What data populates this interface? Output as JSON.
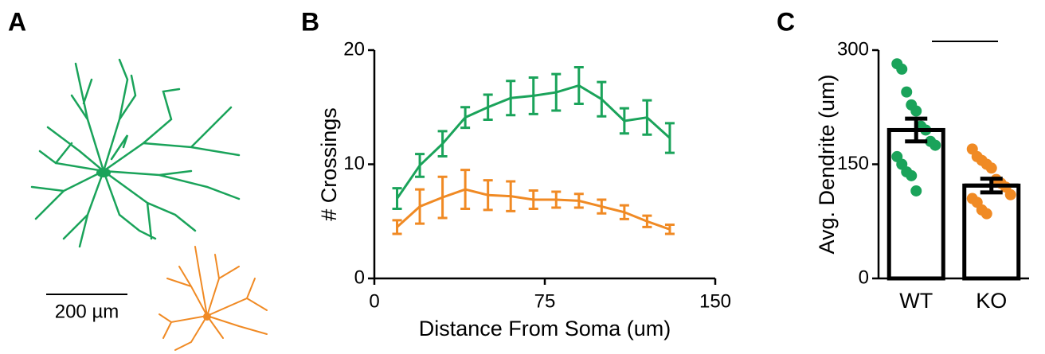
{
  "panel_a": {
    "label": "A",
    "scale_bar": "200 µm"
  },
  "chart_data": [
    {
      "type": "line",
      "label": "B",
      "xlabel": "Distance From Soma (um)",
      "ylabel": "# Crossings",
      "x": [
        10,
        20,
        30,
        40,
        50,
        60,
        70,
        80,
        90,
        100,
        110,
        120,
        130
      ],
      "series": [
        {
          "color": "#1aa35a",
          "values": [
            7,
            9.9,
            11.8,
            14.1,
            15,
            15.8,
            16,
            16.3,
            16.9,
            15.7,
            13.8,
            14.1,
            12.3
          ],
          "errors": [
            0.9,
            1,
            1.1,
            0.9,
            1.1,
            1.5,
            1.6,
            1.6,
            1.6,
            1.5,
            1.1,
            1.5,
            1.3
          ]
        },
        {
          "color": "#f08a24",
          "values": [
            4.5,
            6.3,
            7.1,
            7.8,
            7.3,
            7.2,
            6.9,
            6.9,
            6.8,
            6.3,
            5.8,
            5,
            4.3
          ],
          "errors": [
            0.6,
            1.5,
            1.8,
            1.7,
            1.3,
            1.3,
            0.8,
            0.7,
            0.6,
            0.6,
            0.6,
            0.5,
            0.4
          ]
        }
      ],
      "xlim": [
        0,
        150
      ],
      "xticks": [
        0,
        75,
        150
      ],
      "ylim": [
        0,
        20
      ],
      "yticks": [
        0,
        10,
        20
      ]
    },
    {
      "type": "bar",
      "label": "C",
      "ylabel": "Avg. Dendrite (um)",
      "categories": [
        "WT",
        "KO"
      ],
      "values": [
        195,
        122
      ],
      "errors": [
        15,
        9
      ],
      "colors": [
        "#1aa35a",
        "#f08a24"
      ],
      "points": [
        [
          282,
          275,
          245,
          228,
          220,
          200,
          195,
          180,
          175,
          160,
          150,
          140,
          135,
          115
        ],
        [
          170,
          160,
          155,
          150,
          145,
          130,
          125,
          120,
          110,
          105,
          100,
          90,
          85
        ]
      ],
      "ylim": [
        0,
        300
      ],
      "yticks": [
        0,
        150,
        300
      ]
    }
  ]
}
